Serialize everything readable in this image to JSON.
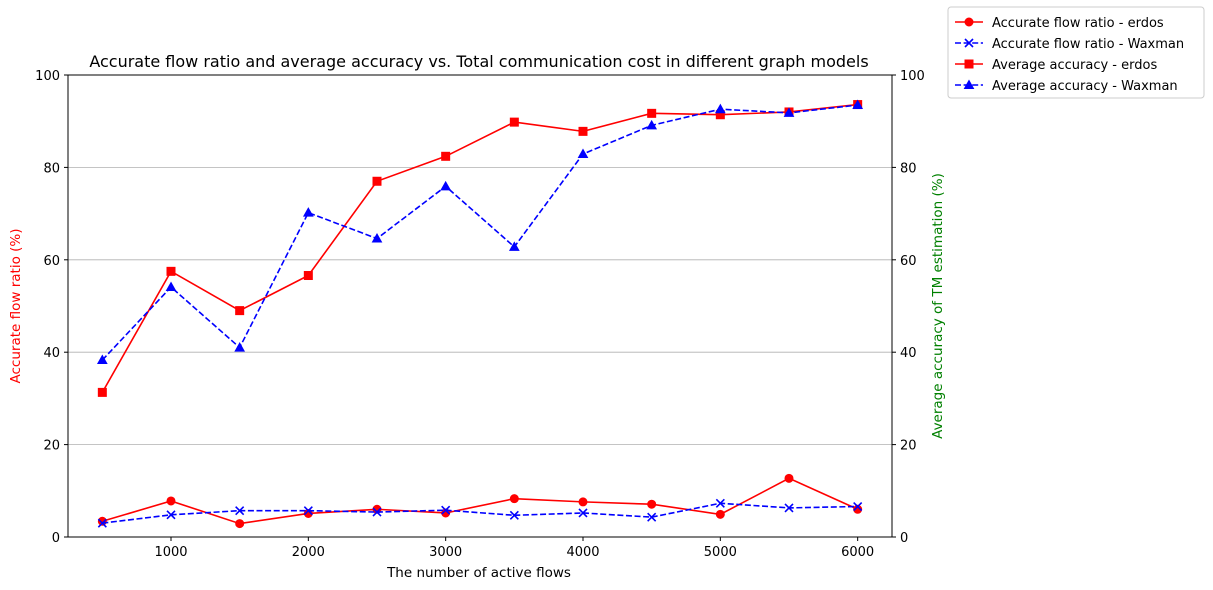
{
  "chart_data": {
    "type": "line",
    "title": "Accurate flow ratio and average accuracy vs. Total communication cost in different graph models",
    "xlabel": "The number of active flows",
    "ylabel_left": "Accurate flow ratio (%)",
    "ylabel_right": "Average accuracy of TM estimation (%)",
    "ylabel_left_color": "#ff0000",
    "ylabel_right_color": "#008000",
    "x": [
      500,
      1000,
      1500,
      2000,
      2500,
      3000,
      3500,
      4000,
      4500,
      5000,
      5500,
      6000
    ],
    "xticks": [
      1000,
      2000,
      3000,
      4000,
      5000,
      6000
    ],
    "xlim": [
      250,
      6250
    ],
    "ylim_left": [
      0,
      100
    ],
    "ylim_right": [
      0,
      100
    ],
    "yticks": [
      0,
      20,
      40,
      60,
      80,
      100
    ],
    "grid": "y-major",
    "legend_position": "outside-top-right",
    "series": [
      {
        "name": "Accurate flow ratio - erdos",
        "axis": "left",
        "color": "#ff0000",
        "linestyle": "solid",
        "marker": "circle",
        "values": [
          3.4,
          7.8,
          2.9,
          5.1,
          6.0,
          5.2,
          8.3,
          7.6,
          7.1,
          4.9,
          12.7,
          6.0
        ]
      },
      {
        "name": "Accurate flow ratio - Waxman",
        "axis": "left",
        "color": "#0000ff",
        "linestyle": "dashed",
        "marker": "x",
        "values": [
          3.0,
          4.8,
          5.7,
          5.7,
          5.4,
          5.8,
          4.7,
          5.2,
          4.3,
          7.3,
          6.3,
          6.6
        ]
      },
      {
        "name": "Average accuracy - erdos",
        "axis": "right",
        "color": "#ff0000",
        "linestyle": "solid",
        "marker": "square",
        "values": [
          31.3,
          57.5,
          49.0,
          56.6,
          77.0,
          82.4,
          89.8,
          87.8,
          91.7,
          91.4,
          92.0,
          93.6
        ]
      },
      {
        "name": "Average accuracy - Waxman",
        "axis": "right",
        "color": "#0000ff",
        "linestyle": "dashed",
        "marker": "triangle",
        "values": [
          38.3,
          54.1,
          41.0,
          70.2,
          64.6,
          75.9,
          62.8,
          82.9,
          89.1,
          92.6,
          91.8,
          93.5
        ]
      }
    ]
  }
}
